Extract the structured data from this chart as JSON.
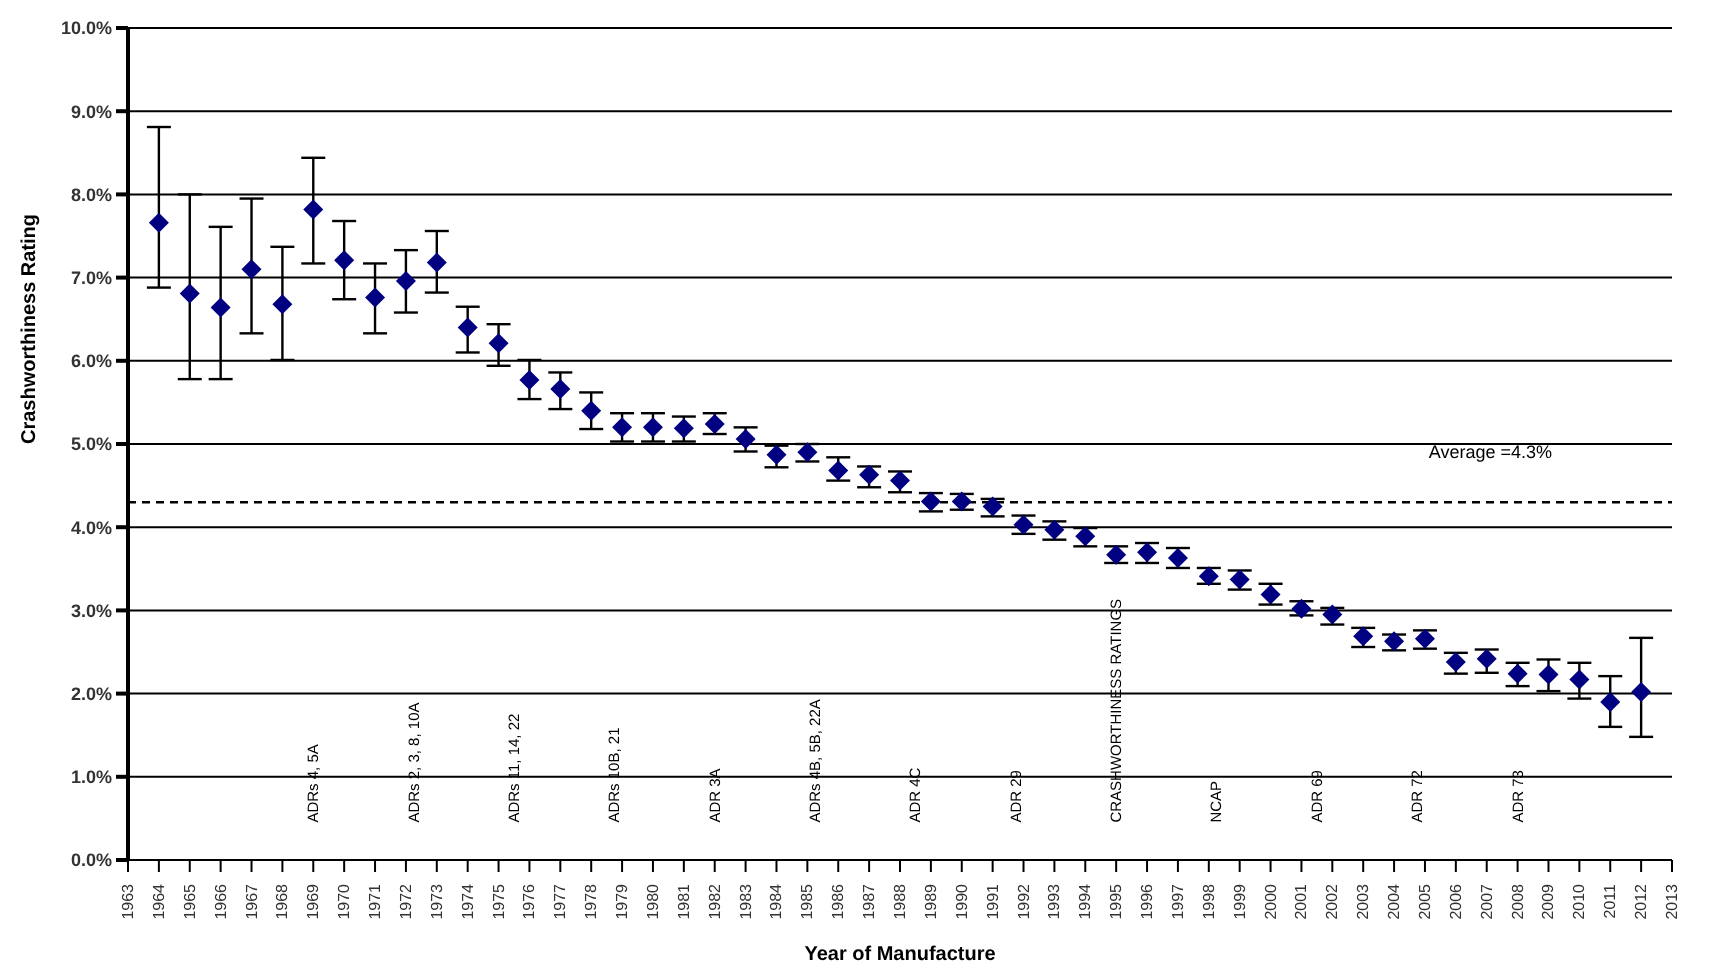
{
  "chart_data": {
    "type": "scatter",
    "xlabel": "Year of Manufacture",
    "ylabel": "Crashworthiness Rating",
    "categories": [
      "1963",
      "1964",
      "1965",
      "1966",
      "1967",
      "1968",
      "1969",
      "1970",
      "1971",
      "1972",
      "1973",
      "1974",
      "1975",
      "1976",
      "1977",
      "1978",
      "1979",
      "1980",
      "1981",
      "1982",
      "1983",
      "1984",
      "1985",
      "1986",
      "1987",
      "1988",
      "1989",
      "1990",
      "1991",
      "1992",
      "1993",
      "1994",
      "1995",
      "1996",
      "1997",
      "1998",
      "1999",
      "2000",
      "2001",
      "2002",
      "2003",
      "2004",
      "2005",
      "2006",
      "2007",
      "2008",
      "2009",
      "2010",
      "2011",
      "2012",
      "2013"
    ],
    "series": [
      {
        "color": "#000080",
        "values": [
          null,
          7.66,
          6.81,
          6.64,
          7.1,
          6.68,
          7.82,
          7.21,
          6.76,
          6.96,
          7.18,
          6.4,
          6.21,
          5.77,
          5.66,
          5.4,
          5.2,
          5.2,
          5.19,
          5.24,
          5.06,
          4.87,
          4.9,
          4.68,
          4.63,
          4.56,
          4.31,
          4.31,
          4.25,
          4.03,
          3.97,
          3.89,
          3.67,
          3.7,
          3.63,
          3.41,
          3.37,
          3.19,
          3.02,
          2.95,
          2.69,
          2.63,
          2.66,
          2.38,
          2.42,
          2.24,
          2.23,
          2.17,
          1.9,
          2.02,
          null
        ],
        "errors": [
          null,
          [
            6.88,
            8.81
          ],
          [
            5.78,
            8.0
          ],
          [
            5.78,
            7.61
          ],
          [
            6.33,
            7.95
          ],
          [
            6.01,
            7.37
          ],
          [
            7.17,
            8.44
          ],
          [
            6.74,
            7.68
          ],
          [
            6.33,
            7.17
          ],
          [
            6.58,
            7.33
          ],
          [
            6.82,
            7.56
          ],
          [
            6.1,
            6.65
          ],
          [
            5.94,
            6.44
          ],
          [
            5.54,
            6.01
          ],
          [
            5.42,
            5.86
          ],
          [
            5.18,
            5.62
          ],
          [
            5.03,
            5.37
          ],
          [
            5.03,
            5.37
          ],
          [
            5.03,
            5.33
          ],
          [
            5.12,
            5.37
          ],
          [
            4.91,
            5.2
          ],
          [
            4.72,
            4.98
          ],
          [
            4.79,
            5.0
          ],
          [
            4.56,
            4.84
          ],
          [
            4.48,
            4.73
          ],
          [
            4.42,
            4.67
          ],
          [
            4.19,
            4.41
          ],
          [
            4.21,
            4.4
          ],
          [
            4.13,
            4.34
          ],
          [
            3.92,
            4.14
          ],
          [
            3.85,
            4.07
          ],
          [
            3.77,
            3.99
          ],
          [
            3.57,
            3.77
          ],
          [
            3.57,
            3.81
          ],
          [
            3.51,
            3.75
          ],
          [
            3.32,
            3.51
          ],
          [
            3.25,
            3.48
          ],
          [
            3.07,
            3.32
          ],
          [
            2.94,
            3.11
          ],
          [
            2.83,
            3.03
          ],
          [
            2.56,
            2.79
          ],
          [
            2.52,
            2.71
          ],
          [
            2.54,
            2.76
          ],
          [
            2.24,
            2.49
          ],
          [
            2.25,
            2.53
          ],
          [
            2.09,
            2.37
          ],
          [
            2.03,
            2.41
          ],
          [
            1.94,
            2.37
          ],
          [
            1.6,
            2.21
          ],
          [
            1.48,
            2.67
          ],
          null
        ]
      }
    ],
    "ylim": [
      0,
      10
    ],
    "yticks": [
      {
        "value": 0,
        "label": "0.0%"
      },
      {
        "value": 1,
        "label": "1.0%"
      },
      {
        "value": 2,
        "label": "2.0%"
      },
      {
        "value": 3,
        "label": "3.0%"
      },
      {
        "value": 4,
        "label": "4.0%"
      },
      {
        "value": 5,
        "label": "5.0%"
      },
      {
        "value": 6,
        "label": "6.0%"
      },
      {
        "value": 7,
        "label": "7.0%"
      },
      {
        "value": 8,
        "label": "8.0%"
      },
      {
        "value": 9,
        "label": "9.0%"
      },
      {
        "value": 10,
        "label": "10.0%"
      }
    ],
    "ref_lines": [
      {
        "axis": "y",
        "value": 4.3,
        "label": "Average =4.3%",
        "line_style": "dashed",
        "color": "#000000"
      }
    ],
    "annotations": [
      "ADRs 4, 5A",
      "ADRs 2, 3, 8, 10A",
      "ADRs 11, 14, 22",
      "ADRs 10B, 21",
      "ADR 3A",
      "ADRs 4B, 5B, 22A",
      "ADR 4C",
      "ADR 29",
      "CRASHWORTHINESS RATINGS",
      "NCAP",
      "ADR 69",
      "ADR 72",
      "ADR 73"
    ],
    "grid": "y",
    "legend": false,
    "marker": "diamond",
    "line_style": "none"
  }
}
